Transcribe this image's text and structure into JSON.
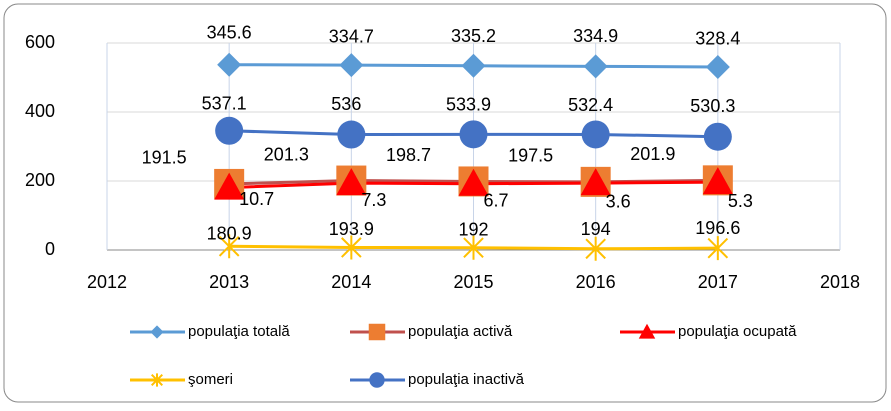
{
  "chart_data": {
    "type": "line",
    "x": [
      2013,
      2014,
      2015,
      2016,
      2017
    ],
    "xlim": [
      2012,
      2018
    ],
    "xticks": [
      2012,
      2013,
      2014,
      2015,
      2016,
      2017,
      2018
    ],
    "ylim": [
      0,
      600
    ],
    "yticks": [
      0,
      200,
      400,
      600
    ],
    "grid": true,
    "legend": "bottom",
    "series": [
      {
        "name": "populaţia totală",
        "color": "#5b9bd5",
        "marker": "diamond",
        "values": [
          537.1,
          536,
          533.9,
          532.4,
          530.3
        ]
      },
      {
        "name": "populaţia activă",
        "color": "#ed7d31",
        "line_color": "#c0504d",
        "marker": "square",
        "values": [
          191.5,
          201.3,
          198.7,
          197.5,
          201.9
        ]
      },
      {
        "name": "populaţia ocupată",
        "color": "#ff0000",
        "marker": "triangle",
        "label_color": "#ff0000",
        "values": [
          180.9,
          193.9,
          192,
          194,
          196.6
        ]
      },
      {
        "name": "şomeri",
        "color": "#ffc000",
        "marker": "star",
        "values": [
          10.7,
          7.3,
          6.7,
          3.6,
          5.3
        ]
      },
      {
        "name": "populaţia inactivă",
        "color": "#4472c4",
        "marker": "circle",
        "values": [
          345.6,
          334.7,
          335.2,
          334.9,
          328.4
        ]
      }
    ]
  }
}
